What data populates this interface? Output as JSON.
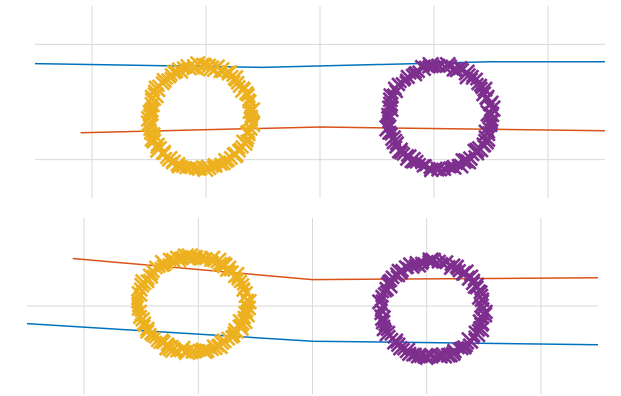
{
  "chart_data": [
    {
      "type": "scatter",
      "title": "",
      "xlabel": "",
      "ylabel": "",
      "grid": true,
      "legend": "none",
      "xlim": [
        0,
        10
      ],
      "ylim": [
        0,
        10
      ],
      "xticks": [
        1,
        3,
        5,
        7,
        9
      ],
      "yticks": [
        2,
        8
      ],
      "lines": [
        {
          "color": "#0072bd",
          "x": [
            0,
            4,
            8,
            10
          ],
          "y": [
            7.0,
            6.8,
            7.1,
            7.1
          ]
        },
        {
          "color": "#d95319",
          "x": [
            0.8,
            5,
            10
          ],
          "y": [
            3.4,
            3.7,
            3.5
          ]
        }
      ],
      "series": [
        {
          "color": "#edb120",
          "marker": "x",
          "center": [
            2.9,
            4.2
          ],
          "radius": [
            0.9,
            2.7
          ],
          "points": 100
        },
        {
          "color": "#7e2f8e",
          "marker": "x",
          "center": [
            7.1,
            4.2
          ],
          "radius": [
            0.9,
            2.7
          ],
          "points": 100
        }
      ]
    },
    {
      "type": "scatter",
      "title": "",
      "xlabel": "",
      "ylabel": "",
      "grid": true,
      "legend": "none",
      "xlim": [
        0,
        10
      ],
      "ylim": [
        0,
        10
      ],
      "xticks": [
        1,
        3,
        5,
        7,
        9
      ],
      "yticks": [
        5
      ],
      "lines": [
        {
          "color": "#d95319",
          "x": [
            0.8,
            5,
            10
          ],
          "y": [
            7.7,
            6.5,
            6.6
          ]
        },
        {
          "color": "#0072bd",
          "x": [
            0,
            5,
            10
          ],
          "y": [
            4.0,
            3.0,
            2.8
          ]
        }
      ],
      "series": [
        {
          "color": "#edb120",
          "marker": "x",
          "center": [
            2.9,
            5.1
          ],
          "radius": [
            0.95,
            2.7
          ],
          "points": 100
        },
        {
          "color": "#7e2f8e",
          "marker": "x",
          "center": [
            7.1,
            4.8
          ],
          "radius": [
            0.9,
            2.7
          ],
          "points": 100
        }
      ]
    }
  ]
}
